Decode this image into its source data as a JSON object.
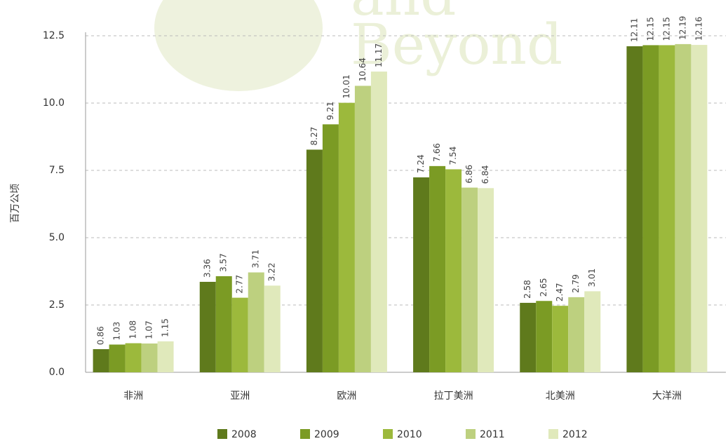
{
  "chart_data": {
    "type": "bar",
    "watermark": [
      "and",
      "Beyond"
    ],
    "ylabel": "百万公顷",
    "categories": [
      "非洲",
      "亚洲",
      "欧洲",
      "拉丁美洲",
      "北美洲",
      "大洋洲"
    ],
    "series": [
      {
        "name": "2008",
        "color": "#5f7a1c",
        "values": [
          0.86,
          3.36,
          8.27,
          7.24,
          2.58,
          12.11
        ]
      },
      {
        "name": "2009",
        "color": "#7b9b24",
        "values": [
          1.03,
          3.57,
          9.21,
          7.66,
          2.65,
          12.15
        ]
      },
      {
        "name": "2010",
        "color": "#9cb93c",
        "values": [
          1.08,
          2.77,
          10.01,
          7.54,
          2.47,
          12.15
        ]
      },
      {
        "name": "2011",
        "color": "#bdd07f",
        "values": [
          1.07,
          3.71,
          10.64,
          6.86,
          2.79,
          12.19
        ]
      },
      {
        "name": "2012",
        "color": "#e0e9bb",
        "values": [
          1.15,
          3.22,
          11.17,
          6.84,
          3.01,
          12.16
        ]
      }
    ],
    "ylim": [
      0,
      12.5
    ],
    "yticks": [
      {
        "value": 0,
        "label": "0.0"
      },
      2.5,
      {
        "value": 5,
        "label": "5.0"
      },
      7.5,
      {
        "value": 10,
        "label": "10.0"
      },
      12.5
    ],
    "grid": true,
    "legend": "bottom"
  }
}
